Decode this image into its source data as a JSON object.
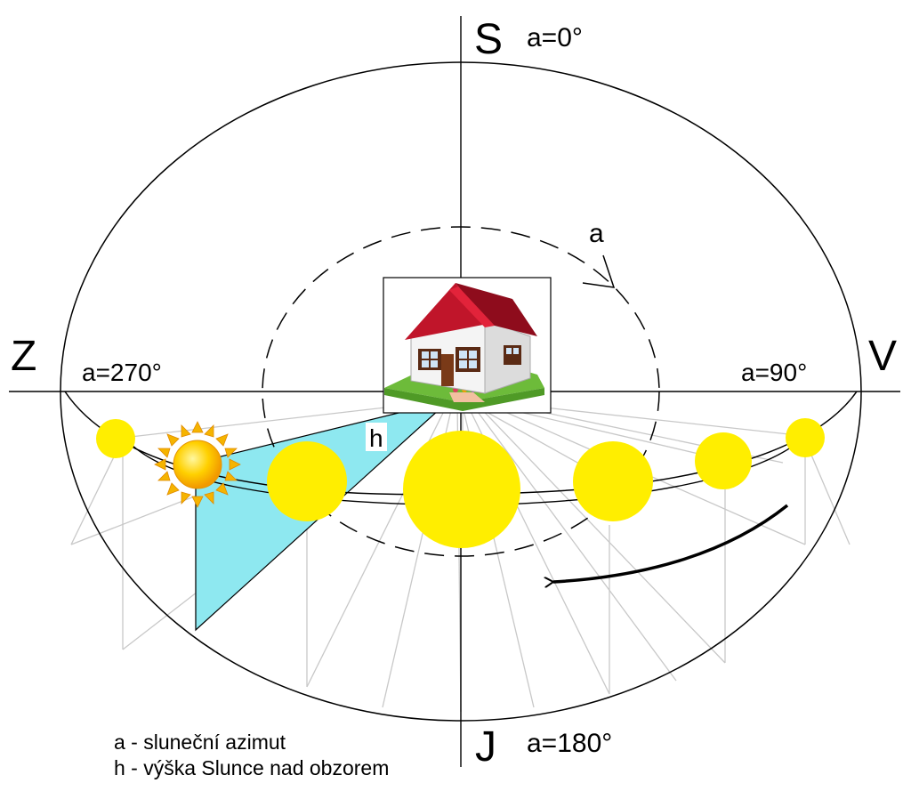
{
  "compass": {
    "north": "S",
    "east": "V",
    "south": "J",
    "west": "Z"
  },
  "azimuth_labels": {
    "north": "a=0°",
    "east": "a=90°",
    "south": "a=180°",
    "west": "a=270°"
  },
  "angle_labels": {
    "azimuth": "a",
    "altitude": "h"
  },
  "legend": {
    "azimuth": "a - sluneční azimut",
    "altitude": "h - výška Slunce nad obzorem"
  },
  "colors": {
    "sun": "#ffee00",
    "sun_ray": "#f5b400",
    "altitude_wedge": "#8ee8f0",
    "roof": "#c0152a",
    "wall": "#f4f4f4",
    "lawn": "#6dbb3a",
    "lines": "#000000",
    "guide_lines": "#c8c8c8"
  },
  "icons": [
    "house-icon",
    "sun-icon",
    "direction-arrow-icon"
  ]
}
